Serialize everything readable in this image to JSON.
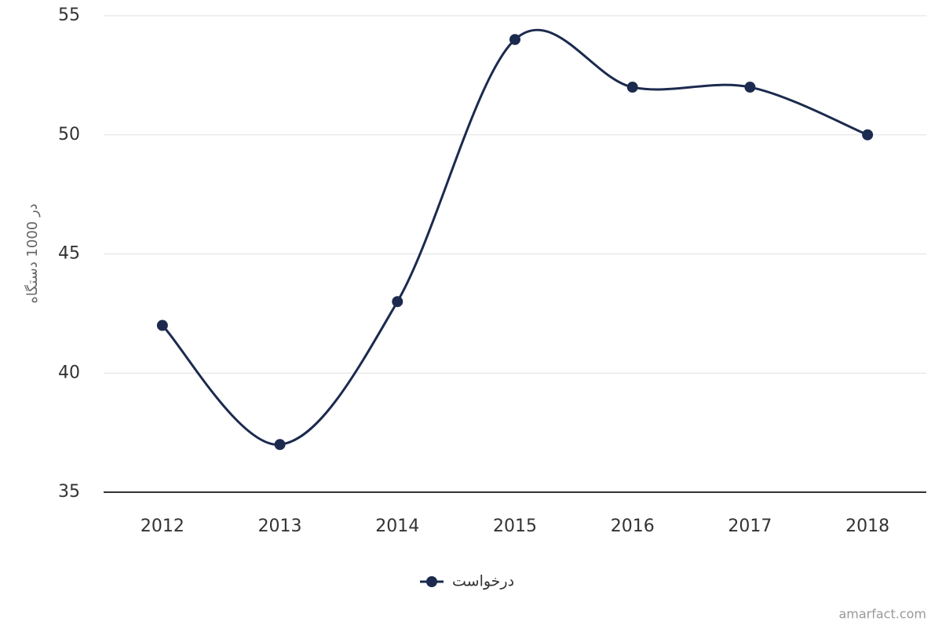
{
  "chart_data": {
    "type": "line",
    "y_label": "در 1000 دستگاه",
    "categories": [
      "2012",
      "2013",
      "2014",
      "2015",
      "2016",
      "2017",
      "2018"
    ],
    "series": [
      {
        "name": "درخواست",
        "color": "#1b2a4e",
        "values": [
          42,
          37,
          43,
          54,
          52,
          52,
          50
        ]
      }
    ],
    "ylim": [
      35,
      55
    ],
    "yticks": [
      35,
      40,
      45,
      50,
      55
    ],
    "grid": true,
    "smooth": true,
    "legend": "bottom",
    "credits": "amarfact.com"
  }
}
